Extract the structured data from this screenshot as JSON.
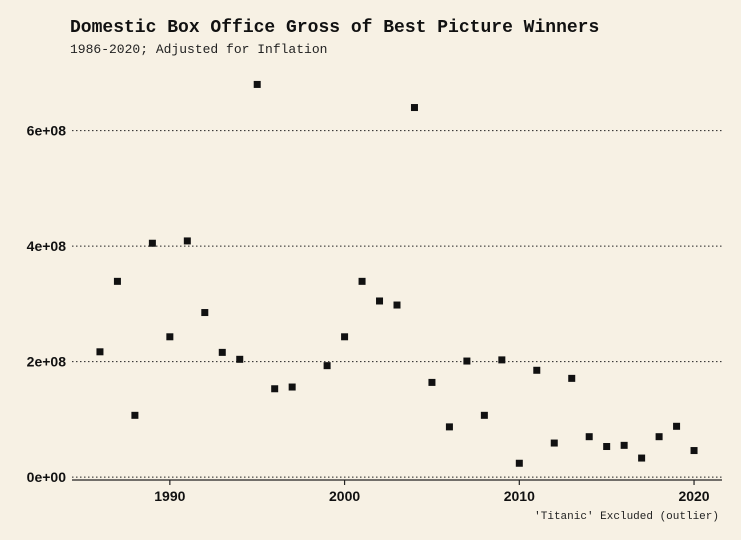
{
  "chart_data": {
    "type": "scatter",
    "title": "Domestic Box Office Gross of Best Picture Winners",
    "subtitle": "1986-2020; Adjusted for Inflation",
    "caption": "'Titanic' Excluded (outlier)",
    "xlabel": "",
    "ylabel": "",
    "xlim": [
      1984.4,
      2021.6
    ],
    "ylim": [
      -5000000,
      705000000
    ],
    "x_ticks": [
      1990,
      2000,
      2010,
      2020
    ],
    "x_tick_labels": [
      "1990",
      "2000",
      "2010",
      "2020"
    ],
    "y_ticks": [
      0,
      200000000,
      400000000,
      600000000
    ],
    "y_tick_labels": [
      "0e+00",
      "2e+08",
      "4e+08",
      "6e+08"
    ],
    "grid": "horizontal dotted",
    "marker": "square",
    "point_color": "#111111",
    "background": "#f7f1e4",
    "points": [
      {
        "x": 1986,
        "y": 217000000
      },
      {
        "x": 1987,
        "y": 339000000
      },
      {
        "x": 1988,
        "y": 107000000
      },
      {
        "x": 1989,
        "y": 405000000
      },
      {
        "x": 1990,
        "y": 243000000
      },
      {
        "x": 1991,
        "y": 409000000
      },
      {
        "x": 1992,
        "y": 285000000
      },
      {
        "x": 1993,
        "y": 216000000
      },
      {
        "x": 1994,
        "y": 204000000
      },
      {
        "x": 1995,
        "y": 680000000
      },
      {
        "x": 1996,
        "y": 153000000
      },
      {
        "x": 1997,
        "y": 156000000
      },
      {
        "x": 1999,
        "y": 193000000
      },
      {
        "x": 2000,
        "y": 243000000
      },
      {
        "x": 2001,
        "y": 339000000
      },
      {
        "x": 2002,
        "y": 305000000
      },
      {
        "x": 2003,
        "y": 298000000
      },
      {
        "x": 2004,
        "y": 640000000
      },
      {
        "x": 2005,
        "y": 164000000
      },
      {
        "x": 2006,
        "y": 87000000
      },
      {
        "x": 2007,
        "y": 201000000
      },
      {
        "x": 2008,
        "y": 107000000
      },
      {
        "x": 2009,
        "y": 203000000
      },
      {
        "x": 2010,
        "y": 24000000
      },
      {
        "x": 2011,
        "y": 185000000
      },
      {
        "x": 2012,
        "y": 59000000
      },
      {
        "x": 2013,
        "y": 171000000
      },
      {
        "x": 2014,
        "y": 70000000
      },
      {
        "x": 2015,
        "y": 53000000
      },
      {
        "x": 2016,
        "y": 55000000
      },
      {
        "x": 2017,
        "y": 33000000
      },
      {
        "x": 2018,
        "y": 70000000
      },
      {
        "x": 2019,
        "y": 88000000
      },
      {
        "x": 2020,
        "y": 46000000
      }
    ]
  }
}
